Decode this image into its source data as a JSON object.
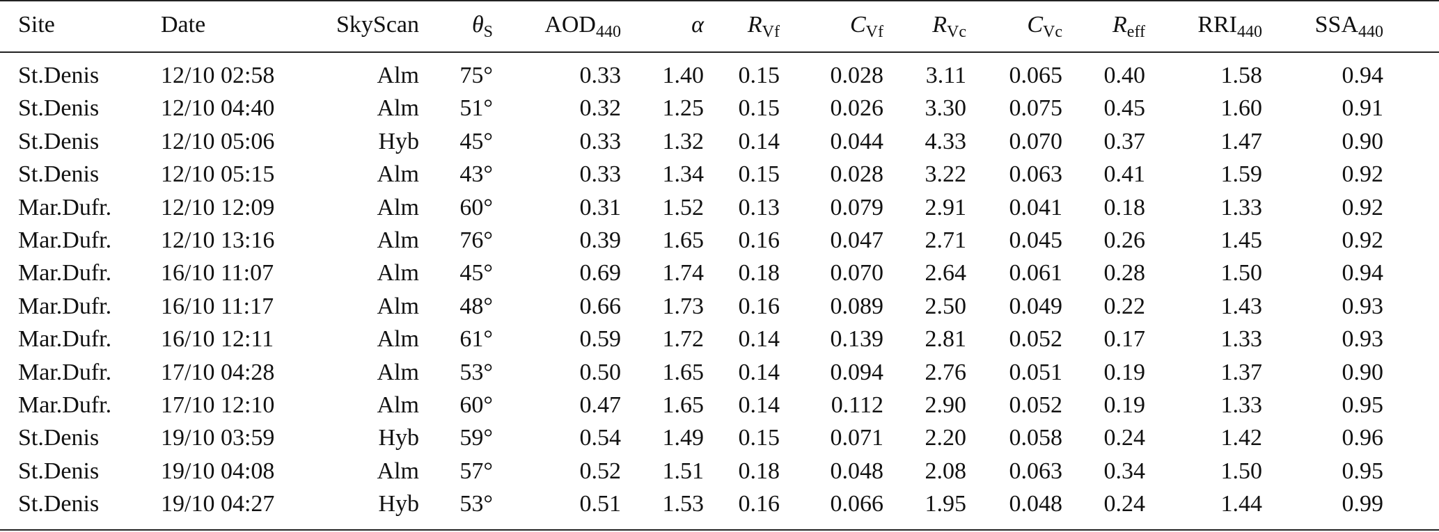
{
  "table": {
    "header": [
      {
        "text": "Site"
      },
      {
        "text": "Date"
      },
      {
        "text": "SkyScan"
      },
      {
        "text": "θ",
        "sub": "S",
        "italic": true
      },
      {
        "text": "AOD",
        "sub": "440"
      },
      {
        "text": "α",
        "italic": true
      },
      {
        "text": "R",
        "sub": "Vf",
        "italic": true
      },
      {
        "text": "C",
        "sub": "Vf",
        "italic": true
      },
      {
        "text": "R",
        "sub": "Vc",
        "italic": true
      },
      {
        "text": "C",
        "sub": "Vc",
        "italic": true
      },
      {
        "text": "R",
        "sub": "eff",
        "italic": true
      },
      {
        "text": "RRI",
        "sub": "440"
      },
      {
        "text": "SSA",
        "sub": "440"
      }
    ],
    "rows": [
      [
        "St.Denis",
        "12/10 02:58",
        "Alm",
        "75°",
        "0.33",
        "1.40",
        "0.15",
        "0.028",
        "3.11",
        "0.065",
        "0.40",
        "1.58",
        "0.94"
      ],
      [
        "St.Denis",
        "12/10 04:40",
        "Alm",
        "51°",
        "0.32",
        "1.25",
        "0.15",
        "0.026",
        "3.30",
        "0.075",
        "0.45",
        "1.60",
        "0.91"
      ],
      [
        "St.Denis",
        "12/10 05:06",
        "Hyb",
        "45°",
        "0.33",
        "1.32",
        "0.14",
        "0.044",
        "4.33",
        "0.070",
        "0.37",
        "1.47",
        "0.90"
      ],
      [
        "St.Denis",
        "12/10 05:15",
        "Alm",
        "43°",
        "0.33",
        "1.34",
        "0.15",
        "0.028",
        "3.22",
        "0.063",
        "0.41",
        "1.59",
        "0.92"
      ],
      [
        "Mar.Dufr.",
        "12/10 12:09",
        "Alm",
        "60°",
        "0.31",
        "1.52",
        "0.13",
        "0.079",
        "2.91",
        "0.041",
        "0.18",
        "1.33",
        "0.92"
      ],
      [
        "Mar.Dufr.",
        "12/10 13:16",
        "Alm",
        "76°",
        "0.39",
        "1.65",
        "0.16",
        "0.047",
        "2.71",
        "0.045",
        "0.26",
        "1.45",
        "0.92"
      ],
      [
        "Mar.Dufr.",
        "16/10 11:07",
        "Alm",
        "45°",
        "0.69",
        "1.74",
        "0.18",
        "0.070",
        "2.64",
        "0.061",
        "0.28",
        "1.50",
        "0.94"
      ],
      [
        "Mar.Dufr.",
        "16/10 11:17",
        "Alm",
        "48°",
        "0.66",
        "1.73",
        "0.16",
        "0.089",
        "2.50",
        "0.049",
        "0.22",
        "1.43",
        "0.93"
      ],
      [
        "Mar.Dufr.",
        "16/10 12:11",
        "Alm",
        "61°",
        "0.59",
        "1.72",
        "0.14",
        "0.139",
        "2.81",
        "0.052",
        "0.17",
        "1.33",
        "0.93"
      ],
      [
        "Mar.Dufr.",
        "17/10 04:28",
        "Alm",
        "53°",
        "0.50",
        "1.65",
        "0.14",
        "0.094",
        "2.76",
        "0.051",
        "0.19",
        "1.37",
        "0.90"
      ],
      [
        "Mar.Dufr.",
        "17/10 12:10",
        "Alm",
        "60°",
        "0.47",
        "1.65",
        "0.14",
        "0.112",
        "2.90",
        "0.052",
        "0.19",
        "1.33",
        "0.95"
      ],
      [
        "St.Denis",
        "19/10 03:59",
        "Hyb",
        "59°",
        "0.54",
        "1.49",
        "0.15",
        "0.071",
        "2.20",
        "0.058",
        "0.24",
        "1.42",
        "0.96"
      ],
      [
        "St.Denis",
        "19/10 04:08",
        "Alm",
        "57°",
        "0.52",
        "1.51",
        "0.18",
        "0.048",
        "2.08",
        "0.063",
        "0.34",
        "1.50",
        "0.95"
      ],
      [
        "St.Denis",
        "19/10 04:27",
        "Hyb",
        "53°",
        "0.51",
        "1.53",
        "0.16",
        "0.066",
        "1.95",
        "0.048",
        "0.24",
        "1.44",
        "0.99"
      ]
    ]
  }
}
